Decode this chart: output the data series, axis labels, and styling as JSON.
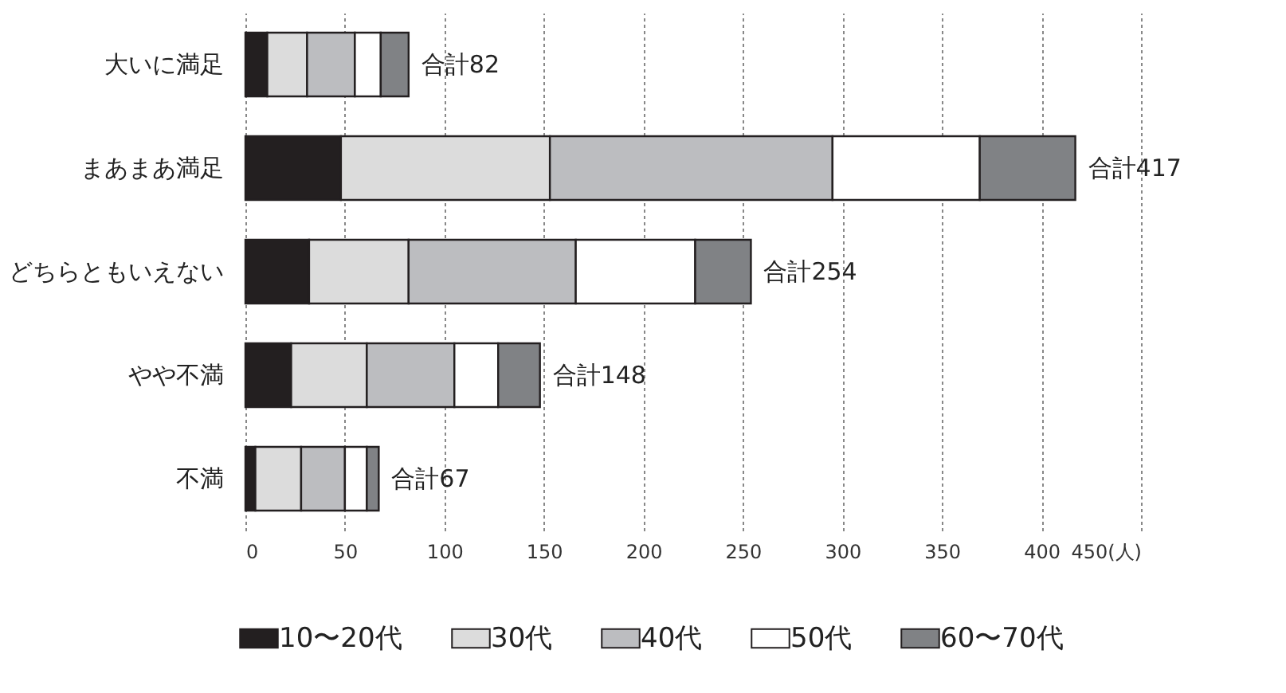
{
  "chart_data": {
    "type": "bar",
    "orientation": "horizontal",
    "stacked": true,
    "categories": [
      "大いに満足",
      "まあまあ満足",
      "どちらともいえない",
      "やや不満",
      "不満"
    ],
    "series": [
      {
        "name": "10〜20代",
        "color": "#231f20",
        "values": [
          11,
          48,
          32,
          23,
          5
        ]
      },
      {
        "name": "30代",
        "color": "#dcdcdc",
        "values": [
          20,
          105,
          50,
          38,
          23
        ]
      },
      {
        "name": "40代",
        "color": "#bcbdc0",
        "values": [
          24,
          142,
          84,
          44,
          22
        ]
      },
      {
        "name": "50代",
        "color": "#ffffff",
        "values": [
          13,
          74,
          60,
          22,
          11
        ]
      },
      {
        "name": "60〜70代",
        "color": "#808285",
        "values": [
          14,
          48,
          28,
          21,
          6
        ]
      }
    ],
    "totals": [
      "合計82",
      "合計417",
      "合計254",
      "合計148",
      "合計67"
    ],
    "xlim": [
      0,
      450
    ],
    "xticks": [
      0,
      50,
      100,
      150,
      200,
      250,
      300,
      350,
      400,
      {
        "value": 450,
        "label": "450(人)"
      }
    ],
    "grid": "x",
    "legend": "bottom"
  }
}
